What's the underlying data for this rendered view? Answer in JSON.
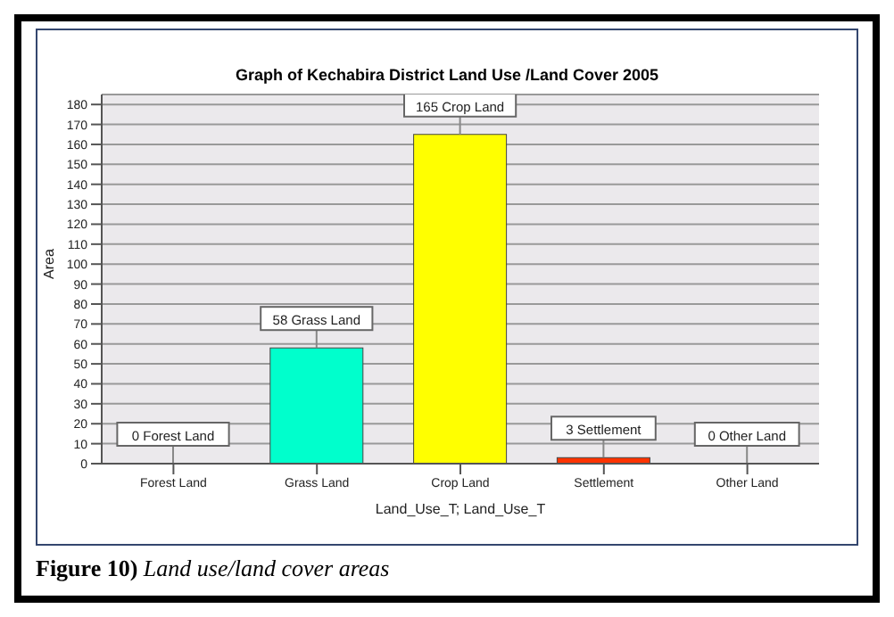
{
  "chart_data": {
    "type": "bar",
    "title": "Graph of Kechabira District Land Use /Land Cover 2005",
    "xlabel": "Land_Use_T; Land_Use_T",
    "ylabel": "Area",
    "categories": [
      "Forest Land",
      "Grass Land",
      "Crop Land",
      "Settlement",
      "Other Land"
    ],
    "values": [
      0,
      58,
      165,
      3,
      0
    ],
    "colors": [
      "#808080",
      "#00ffcc",
      "#ffff00",
      "#ff3300",
      "#808080"
    ],
    "value_labels": [
      "0 Forest Land",
      "58 Grass Land",
      "165 Crop Land",
      "3 Settlement",
      "0 Other Land"
    ],
    "ylim": [
      0,
      185
    ],
    "yticks": [
      0,
      10,
      20,
      30,
      40,
      50,
      60,
      70,
      80,
      90,
      100,
      110,
      120,
      130,
      140,
      150,
      160,
      170,
      180
    ],
    "grid": "y",
    "annotations": [
      "Figure 10) Land use/land cover areas"
    ]
  }
}
